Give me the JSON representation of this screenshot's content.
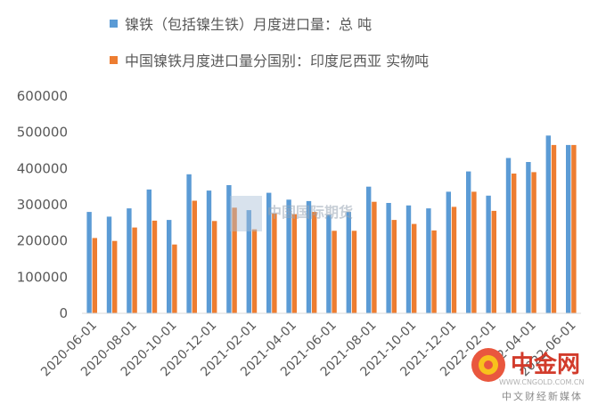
{
  "colors": {
    "series1": "#5b9bd5",
    "series2": "#ed7d31",
    "axis": "#d9d9d9",
    "text": "#595959"
  },
  "watermark": {
    "text": "中国国际期货",
    "url": "WWW.CNGOLD.COM.CN",
    "logo_name": "中金网",
    "logo_tagline": "中文财经新媒体"
  },
  "chart_data": {
    "type": "bar",
    "categories": [
      "2020-06-01",
      "2020-07-01",
      "2020-08-01",
      "2020-09-01",
      "2020-10-01",
      "2020-11-01",
      "2020-12-01",
      "2021-01-01",
      "2021-02-01",
      "2021-03-01",
      "2021-04-01",
      "2021-05-01",
      "2021-06-01",
      "2021-07-01",
      "2021-08-01",
      "2021-09-01",
      "2021-10-01",
      "2021-11-01",
      "2021-12-01",
      "2022-01-01",
      "2022-02-01",
      "2022-03-01",
      "2022-04-01",
      "2022-05-01",
      "2022-06-01"
    ],
    "tick_labels": [
      "2020-06-01",
      "2020-08-01",
      "2020-10-01",
      "2020-12-01",
      "2021-02-01",
      "2021-04-01",
      "2021-06-01",
      "2021-08-01",
      "2021-10-01",
      "2021-12-01",
      "2022-02-01",
      "2022-04-01",
      "2022-06-01"
    ],
    "series": [
      {
        "name": "镍铁（包括镍生铁）月度进口量：总 吨",
        "values": [
          280000,
          267000,
          290000,
          342000,
          258000,
          384000,
          339000,
          354000,
          285000,
          333000,
          314000,
          310000,
          272000,
          280000,
          350000,
          305000,
          298000,
          290000,
          336000,
          392000,
          325000,
          429000,
          418000,
          491000,
          465000
        ]
      },
      {
        "name": "中国镍铁月度进口量分国别：印度尼西亚 实物吨",
        "values": [
          208000,
          200000,
          237000,
          256000,
          190000,
          311000,
          255000,
          292000,
          232000,
          276000,
          274000,
          280000,
          228000,
          228000,
          308000,
          258000,
          247000,
          229000,
          294000,
          336000,
          283000,
          386000,
          390000,
          465000,
          465000
        ]
      }
    ],
    "yticks": [
      "0",
      "100000",
      "200000",
      "300000",
      "400000",
      "500000",
      "600000"
    ],
    "ylim": [
      0,
      600000
    ],
    "grid": false,
    "legend_position": "top"
  }
}
